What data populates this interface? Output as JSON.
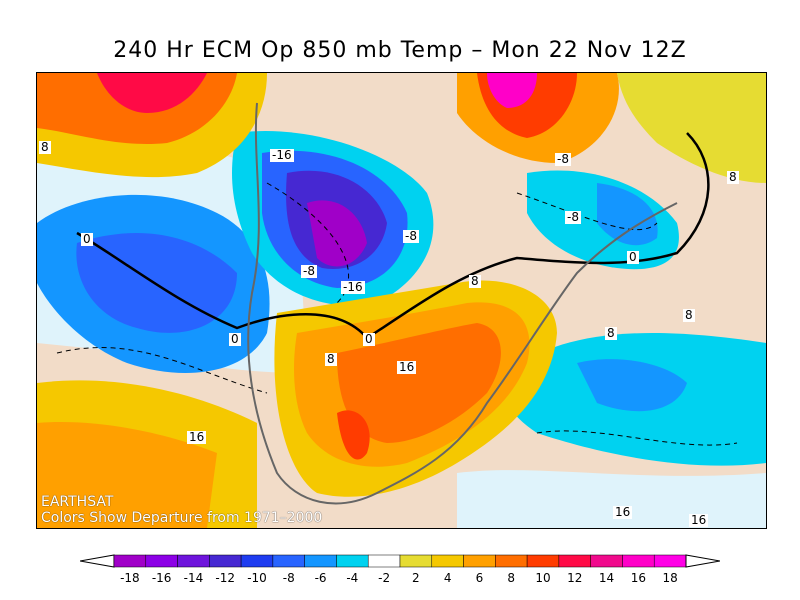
{
  "title": "240 Hr ECM Op 850 mb Temp – Mon 22 Nov 12Z",
  "credit": {
    "line1": "EARTHSAT",
    "line2": "Colors Show Departure from 1971–2000"
  },
  "contour_labels": [
    "-16",
    "-8",
    "-8",
    "-8",
    "-16",
    "-8",
    "0",
    "0",
    "0",
    "0",
    "8",
    "8",
    "8",
    "16",
    "16",
    "8",
    "8",
    "16",
    "16",
    "8"
  ],
  "legend": {
    "ticks": [
      "-18",
      "-16",
      "-14",
      "-12",
      "-10",
      "-8",
      "-6",
      "-4",
      "-2",
      "2",
      "4",
      "6",
      "8",
      "10",
      "12",
      "14",
      "16",
      "18"
    ],
    "colors": [
      "#a000c8",
      "#8c00e6",
      "#6e14dc",
      "#4628d2",
      "#1e3cf0",
      "#2864ff",
      "#1496ff",
      "#00d2f0",
      "#ffffff",
      "#e6dc32",
      "#f5c800",
      "#ffa000",
      "#ff6e00",
      "#ff3c00",
      "#ff0a46",
      "#f00a8c",
      "#ff00c8",
      "#ff00e6"
    ]
  }
}
